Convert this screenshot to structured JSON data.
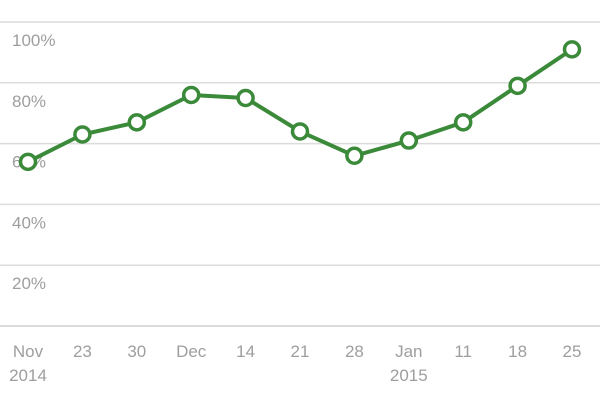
{
  "chart_data": {
    "type": "line",
    "title": "",
    "xlabel": "",
    "ylabel": "",
    "x": [
      "2014-11-16",
      "2014-11-23",
      "2014-11-30",
      "2014-12-07",
      "2014-12-14",
      "2014-12-21",
      "2014-12-28",
      "2015-01-04",
      "2015-01-11",
      "2015-01-18",
      "2015-01-25"
    ],
    "x_tick_labels": [
      {
        "line1": "Nov",
        "line2": "2014"
      },
      {
        "line1": "23",
        "line2": ""
      },
      {
        "line1": "30",
        "line2": ""
      },
      {
        "line1": "Dec",
        "line2": ""
      },
      {
        "line1": "14",
        "line2": ""
      },
      {
        "line1": "21",
        "line2": ""
      },
      {
        "line1": "28",
        "line2": ""
      },
      {
        "line1": "Jan",
        "line2": "2015"
      },
      {
        "line1": "11",
        "line2": ""
      },
      {
        "line1": "18",
        "line2": ""
      },
      {
        "line1": "25",
        "line2": ""
      }
    ],
    "y_ticks": [
      {
        "value": 20,
        "label": "20%"
      },
      {
        "value": 40,
        "label": "40%"
      },
      {
        "value": 60,
        "label": "60%"
      },
      {
        "value": 80,
        "label": "80%"
      },
      {
        "value": 100,
        "label": "100%"
      }
    ],
    "ylim": [
      0,
      100
    ],
    "grid": true,
    "series": [
      {
        "color": "#3a8a3a",
        "values": [
          54,
          63,
          67,
          76,
          75,
          64,
          56,
          61,
          67,
          79,
          91
        ]
      }
    ]
  }
}
